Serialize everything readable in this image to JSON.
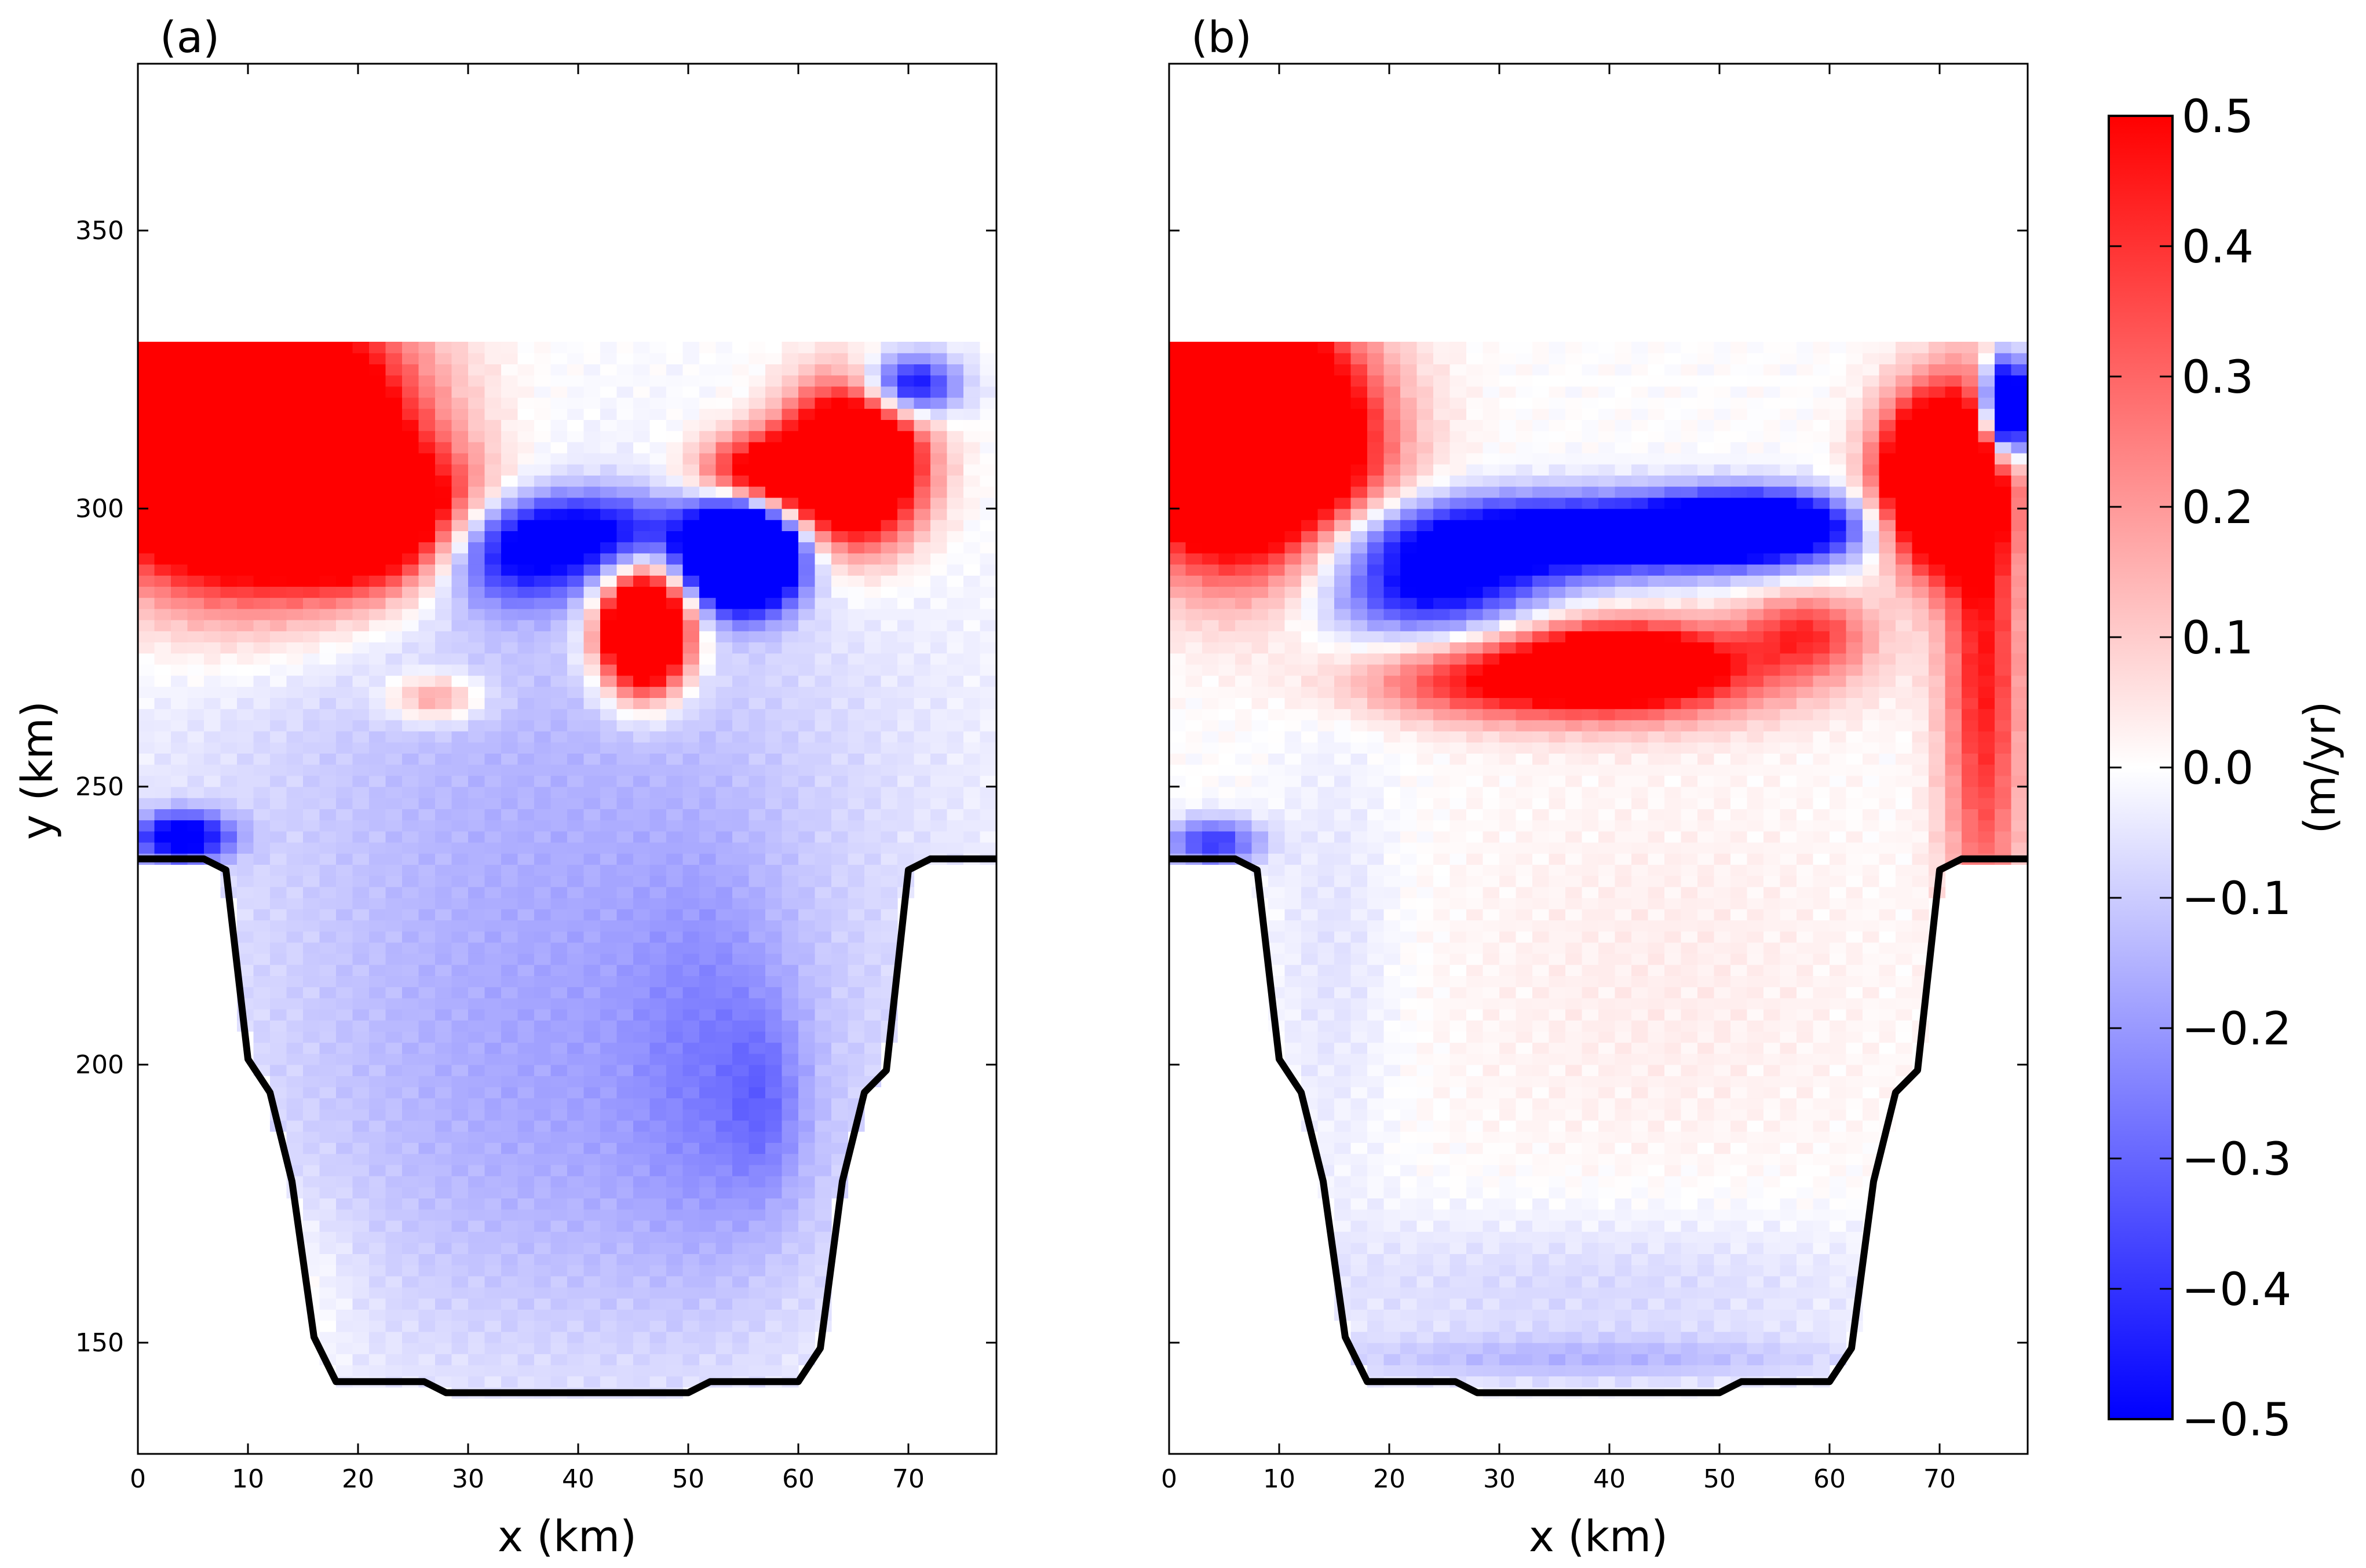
{
  "chart_data": [
    {
      "type": "heatmap",
      "panel_label": "(a)",
      "xlabel": "x (km)",
      "ylabel": "y (km)",
      "xlim": [
        0,
        78
      ],
      "ylim": [
        130,
        380
      ],
      "xticks": [
        0,
        10,
        20,
        30,
        40,
        50,
        60,
        70
      ],
      "yticks": [
        150,
        200,
        250,
        300,
        350
      ],
      "value_units": "m/yr",
      "color_range": [
        -0.5,
        0.5
      ],
      "domain_top_y": 329,
      "ice_front_y": 237,
      "boundary": [
        [
          0,
          237
        ],
        [
          6,
          237
        ],
        [
          8,
          235
        ],
        [
          10,
          201
        ],
        [
          12,
          195
        ],
        [
          14,
          179
        ],
        [
          16,
          151
        ],
        [
          18,
          143
        ],
        [
          26,
          143
        ],
        [
          28,
          141
        ],
        [
          50,
          141
        ],
        [
          52,
          143
        ],
        [
          60,
          143
        ],
        [
          62,
          149
        ],
        [
          64,
          179
        ],
        [
          66,
          195
        ],
        [
          68,
          199
        ],
        [
          70,
          235
        ],
        [
          72,
          237
        ],
        [
          78,
          237
        ]
      ],
      "features": [
        {
          "x": 10,
          "y": 312,
          "sx": 9,
          "sy": 16,
          "v": 1.6
        },
        {
          "x": 5,
          "y": 318,
          "sx": 5,
          "sy": 12,
          "v": 1.0
        },
        {
          "x": 22,
          "y": 298,
          "sx": 6,
          "sy": 8,
          "v": 0.8
        },
        {
          "x": 65,
          "y": 308,
          "sx": 4,
          "sy": 9,
          "v": 1.3
        },
        {
          "x": 57,
          "y": 306,
          "sx": 4,
          "sy": 5,
          "v": 0.7
        },
        {
          "x": 46,
          "y": 278,
          "sx": 2.6,
          "sy": 7,
          "v": 1.5
        },
        {
          "x": 55,
          "y": 292,
          "sx": 3.2,
          "sy": 6,
          "v": -1.8
        },
        {
          "x": 70,
          "y": 322,
          "sx": 3,
          "sy": 4,
          "v": -0.6
        },
        {
          "x": 40,
          "y": 296,
          "sx": 8,
          "sy": 5,
          "v": -0.45
        },
        {
          "x": 34,
          "y": 290,
          "sx": 6,
          "sy": 6,
          "v": -0.35
        },
        {
          "x": 27,
          "y": 266,
          "sx": 3,
          "sy": 3,
          "v": 0.28
        },
        {
          "x": 36,
          "y": 262,
          "sx": 24,
          "sy": 30,
          "v": -0.1
        },
        {
          "x": 40,
          "y": 195,
          "sx": 22,
          "sy": 38,
          "v": -0.17
        },
        {
          "x": 52,
          "y": 200,
          "sx": 5,
          "sy": 25,
          "v": -0.1
        },
        {
          "x": 57,
          "y": 193,
          "sx": 2.5,
          "sy": 12,
          "v": -0.12
        },
        {
          "x": 4,
          "y": 241,
          "sx": 3,
          "sy": 3,
          "v": -0.6
        },
        {
          "x": 14,
          "y": 160,
          "sx": 4,
          "sy": 12,
          "v": 0.06
        }
      ]
    },
    {
      "type": "heatmap",
      "panel_label": "(b)",
      "xlabel": "x (km)",
      "ylabel": "",
      "xlim": [
        0,
        78
      ],
      "ylim": [
        130,
        380
      ],
      "xticks": [
        0,
        10,
        20,
        30,
        40,
        50,
        60,
        70
      ],
      "yticks": [],
      "value_units": "m/yr",
      "color_range": [
        -0.5,
        0.5
      ],
      "domain_top_y": 329,
      "ice_front_y": 237,
      "boundary": [
        [
          0,
          237
        ],
        [
          6,
          237
        ],
        [
          8,
          235
        ],
        [
          10,
          201
        ],
        [
          12,
          195
        ],
        [
          14,
          179
        ],
        [
          16,
          151
        ],
        [
          18,
          143
        ],
        [
          26,
          143
        ],
        [
          28,
          141
        ],
        [
          50,
          141
        ],
        [
          52,
          143
        ],
        [
          60,
          143
        ],
        [
          62,
          149
        ],
        [
          64,
          179
        ],
        [
          66,
          195
        ],
        [
          68,
          199
        ],
        [
          70,
          235
        ],
        [
          72,
          237
        ],
        [
          78,
          237
        ]
      ],
      "features": [
        {
          "x": 7,
          "y": 312,
          "sx": 7,
          "sy": 14,
          "v": 1.6
        },
        {
          "x": 4,
          "y": 320,
          "sx": 4,
          "sy": 10,
          "v": 0.9
        },
        {
          "x": 70,
          "y": 305,
          "sx": 3.5,
          "sy": 10,
          "v": 1.4
        },
        {
          "x": 74,
          "y": 272,
          "sx": 2.5,
          "sy": 35,
          "v": 0.45
        },
        {
          "x": 76,
          "y": 318,
          "sx": 1.5,
          "sy": 6,
          "v": -1.2
        },
        {
          "x": 36,
          "y": 295,
          "sx": 14,
          "sy": 5,
          "v": -0.7
        },
        {
          "x": 24,
          "y": 285,
          "sx": 7,
          "sy": 6,
          "v": -0.5
        },
        {
          "x": 53,
          "y": 297,
          "sx": 6,
          "sy": 4,
          "v": -0.8
        },
        {
          "x": 40,
          "y": 271,
          "sx": 11,
          "sy": 6,
          "v": 0.6
        },
        {
          "x": 41,
          "y": 272,
          "sx": 5,
          "sy": 4,
          "v": 0.6
        },
        {
          "x": 58,
          "y": 278,
          "sx": 4,
          "sy": 5,
          "v": 0.35
        },
        {
          "x": 28,
          "y": 268,
          "sx": 8,
          "sy": 4,
          "v": 0.2
        },
        {
          "x": 45,
          "y": 215,
          "sx": 16,
          "sy": 30,
          "v": 0.035
        },
        {
          "x": 38,
          "y": 160,
          "sx": 22,
          "sy": 10,
          "v": -0.08
        },
        {
          "x": 38,
          "y": 147,
          "sx": 18,
          "sy": 3,
          "v": -0.12
        },
        {
          "x": 15,
          "y": 220,
          "sx": 4,
          "sy": 30,
          "v": -0.06
        },
        {
          "x": 4,
          "y": 240,
          "sx": 3,
          "sy": 3,
          "v": -0.4
        }
      ]
    }
  ],
  "colorbar": {
    "label": "(m/yr)",
    "ticks": [
      "0.5",
      "0.4",
      "0.3",
      "0.2",
      "0.1",
      "0.0",
      "−0.1",
      "−0.2",
      "−0.3",
      "−0.4",
      "−0.5"
    ],
    "min": -0.5,
    "max": 0.5,
    "colors": {
      "low": "#0000ff",
      "mid": "#ffffff",
      "high": "#ff0000"
    }
  }
}
